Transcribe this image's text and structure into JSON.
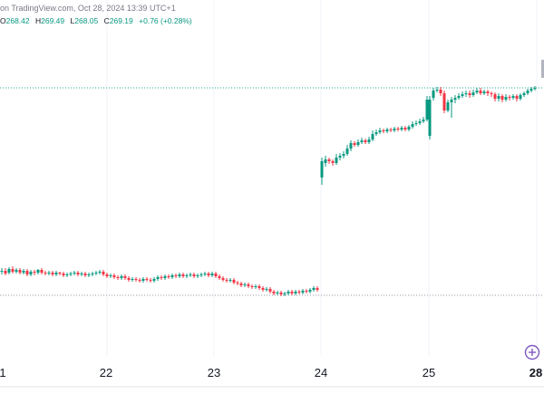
{
  "header": {
    "source_text": "on TradingView.com, Oct 28, 2024 13:39 UTC+1",
    "ohlc": [
      {
        "label": "O",
        "value": "268.42"
      },
      {
        "label": "H",
        "value": "269.49"
      },
      {
        "label": "L",
        "value": "268.05"
      },
      {
        "label": "C",
        "value": "269.19"
      }
    ],
    "change": "+0.76 (+0.28%)"
  },
  "time_axis": {
    "labels": [
      "1",
      "22",
      "23",
      "24",
      "25",
      "28"
    ]
  },
  "colors": {
    "up": "#089981",
    "down": "#f23645",
    "grid": "#f0f3fa",
    "price_line": "#26a69a",
    "ref_line": "#9598a1",
    "plus_button": "#7e57c2"
  },
  "icons": {
    "add_button": "plus-circle-icon"
  }
}
